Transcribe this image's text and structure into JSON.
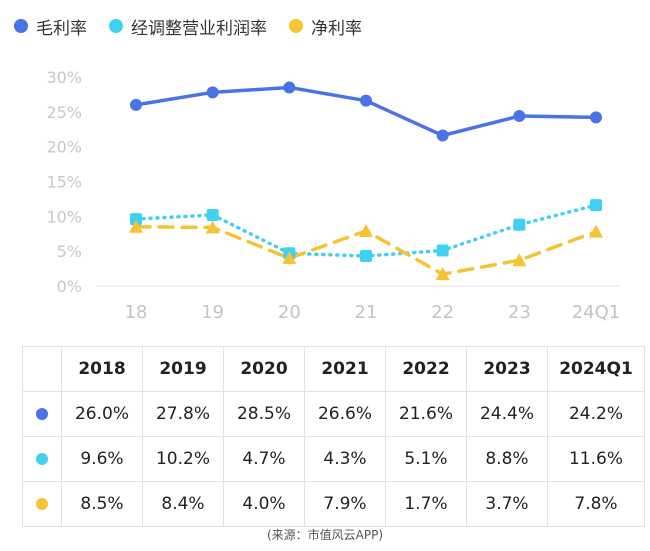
{
  "chart_data": {
    "type": "line",
    "categories": [
      "18",
      "19",
      "20",
      "21",
      "22",
      "23",
      "24Q1"
    ],
    "yticks": [
      "0%",
      "5%",
      "10%",
      "15%",
      "20%",
      "25%",
      "30%"
    ],
    "ylim": [
      0,
      30
    ],
    "grid": false,
    "legend_position": "top-left",
    "series": [
      {
        "name": "毛利率",
        "color": "#4a73e8",
        "style": "solid",
        "marker": "circle",
        "values": [
          26.0,
          27.8,
          28.5,
          26.6,
          21.6,
          24.4,
          24.2
        ]
      },
      {
        "name": "经调整营业利润率",
        "color": "#3fd0f2",
        "style": "dotted",
        "marker": "square",
        "values": [
          9.6,
          10.2,
          4.7,
          4.3,
          5.1,
          8.8,
          11.6
        ]
      },
      {
        "name": "净利率",
        "color": "#f5c333",
        "style": "dashed",
        "marker": "triangle",
        "values": [
          8.5,
          8.4,
          4.0,
          7.9,
          1.7,
          3.7,
          7.8
        ]
      }
    ]
  },
  "table": {
    "headers": [
      "2018",
      "2019",
      "2020",
      "2021",
      "2022",
      "2023",
      "2024Q1"
    ],
    "rows": [
      [
        "26.0%",
        "27.8%",
        "28.5%",
        "26.6%",
        "21.6%",
        "24.4%",
        "24.2%"
      ],
      [
        "9.6%",
        "10.2%",
        "4.7%",
        "4.3%",
        "5.1%",
        "8.8%",
        "11.6%"
      ],
      [
        "8.5%",
        "8.4%",
        "4.0%",
        "7.9%",
        "1.7%",
        "3.7%",
        "7.8%"
      ]
    ]
  },
  "source": "(来源：市值风云APP)"
}
